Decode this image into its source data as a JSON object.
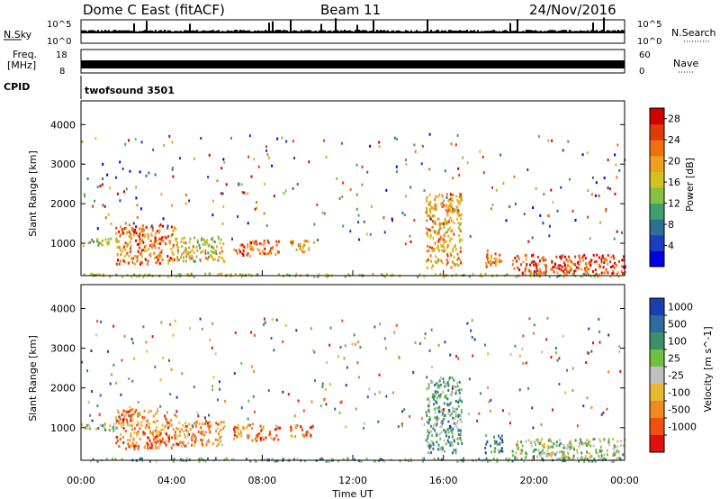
{
  "header": {
    "station": "Dome C East (fitACF)",
    "beam": "Beam 11",
    "date": "24/Nov/2016"
  },
  "panels": {
    "nsky_label": "N.Sky",
    "nsky_ticks": [
      "10^5",
      "10^0"
    ],
    "nsearch_label": "N.Search",
    "freq_label_line1": "Freq.",
    "freq_label_line2": "[MHz]",
    "freq_ticks": [
      "18",
      "8"
    ],
    "nave_label": "Nave",
    "nave_ticks": [
      "60",
      "0"
    ],
    "cpid_label": "CPID",
    "cpid_value": "twofsound 3501"
  },
  "chart_data": [
    {
      "type": "heatmap",
      "name": "Power",
      "xlabel": "Time UT",
      "ylabel": "Slant Range [km]",
      "x_ticks": [
        "00:00",
        "04:00",
        "08:00",
        "12:00",
        "16:00",
        "20:00",
        "00:00"
      ],
      "xlim_hours": [
        0,
        24
      ],
      "y_ticks": [
        1000,
        2000,
        3000,
        4000
      ],
      "ylim_km": [
        180,
        4600
      ],
      "colorbar": {
        "label": "Power [dB]",
        "ticks": [
          4,
          8,
          12,
          16,
          20,
          24,
          28
        ],
        "range": [
          0,
          30
        ],
        "colors": [
          "#0000e6",
          "#1a3fc0",
          "#2f6f8f",
          "#3f9f6f",
          "#88c040",
          "#d4c020",
          "#f0a020",
          "#f07010",
          "#e03a0a",
          "#d00000"
        ]
      },
      "echo_regions": [
        {
          "t": [
            0.0,
            1.6
          ],
          "r": [
            950,
            1150
          ],
          "level": 0.45
        },
        {
          "t": [
            1.5,
            4.2
          ],
          "r": [
            500,
            1500
          ],
          "level": 0.75
        },
        {
          "t": [
            4.2,
            6.3
          ],
          "r": [
            550,
            1200
          ],
          "level": 0.55
        },
        {
          "t": [
            6.7,
            8.7
          ],
          "r": [
            700,
            1100
          ],
          "level": 0.8
        },
        {
          "t": [
            9.2,
            10.3
          ],
          "r": [
            800,
            1100
          ],
          "level": 0.6
        },
        {
          "t": [
            15.2,
            16.8
          ],
          "r": [
            400,
            2300
          ],
          "level": 0.65
        },
        {
          "t": [
            17.8,
            18.6
          ],
          "r": [
            400,
            850
          ],
          "level": 0.7
        },
        {
          "t": [
            19.0,
            24.0
          ],
          "r": [
            250,
            750
          ],
          "level": 0.85
        },
        {
          "t": [
            0.0,
            24.0
          ],
          "r": [
            180,
            260
          ],
          "level": 0.5
        }
      ]
    },
    {
      "type": "heatmap",
      "name": "Velocity",
      "xlabel": "Time UT",
      "ylabel": "Slant Range [km]",
      "x_ticks": [
        "00:00",
        "04:00",
        "08:00",
        "12:00",
        "16:00",
        "20:00",
        "00:00"
      ],
      "xlim_hours": [
        0,
        24
      ],
      "y_ticks": [
        1000,
        2000,
        3000,
        4000
      ],
      "ylim_km": [
        180,
        4600
      ],
      "colorbar": {
        "label": "Velocity [m s^-1]",
        "ticks": [
          "1000",
          "500",
          "100",
          "25",
          "-25",
          "-100",
          "-500",
          "-1000"
        ],
        "colors": [
          "#1a3fb0",
          "#2f6aa0",
          "#3d8f6a",
          "#6fc040",
          "#c0c0c0",
          "#e8b830",
          "#f08a20",
          "#f05010",
          "#e01010"
        ]
      },
      "echo_regions": [
        {
          "t": [
            0.0,
            1.6
          ],
          "r": [
            950,
            1150
          ],
          "level": 0.4
        },
        {
          "t": [
            1.5,
            4.2
          ],
          "r": [
            500,
            1500
          ],
          "level": 0.75
        },
        {
          "t": [
            4.2,
            6.3
          ],
          "r": [
            550,
            1200
          ],
          "level": 0.7
        },
        {
          "t": [
            6.7,
            8.7
          ],
          "r": [
            700,
            1100
          ],
          "level": 0.75
        },
        {
          "t": [
            9.2,
            10.3
          ],
          "r": [
            800,
            1100
          ],
          "level": 0.75
        },
        {
          "t": [
            15.2,
            16.8
          ],
          "r": [
            400,
            2300
          ],
          "level": 0.35
        },
        {
          "t": [
            17.8,
            18.6
          ],
          "r": [
            400,
            850
          ],
          "level": 0.2
        },
        {
          "t": [
            19.0,
            24.0
          ],
          "r": [
            250,
            750
          ],
          "level": 0.45
        },
        {
          "t": [
            0.0,
            24.0
          ],
          "r": [
            180,
            260
          ],
          "level": 0.35
        }
      ]
    }
  ]
}
